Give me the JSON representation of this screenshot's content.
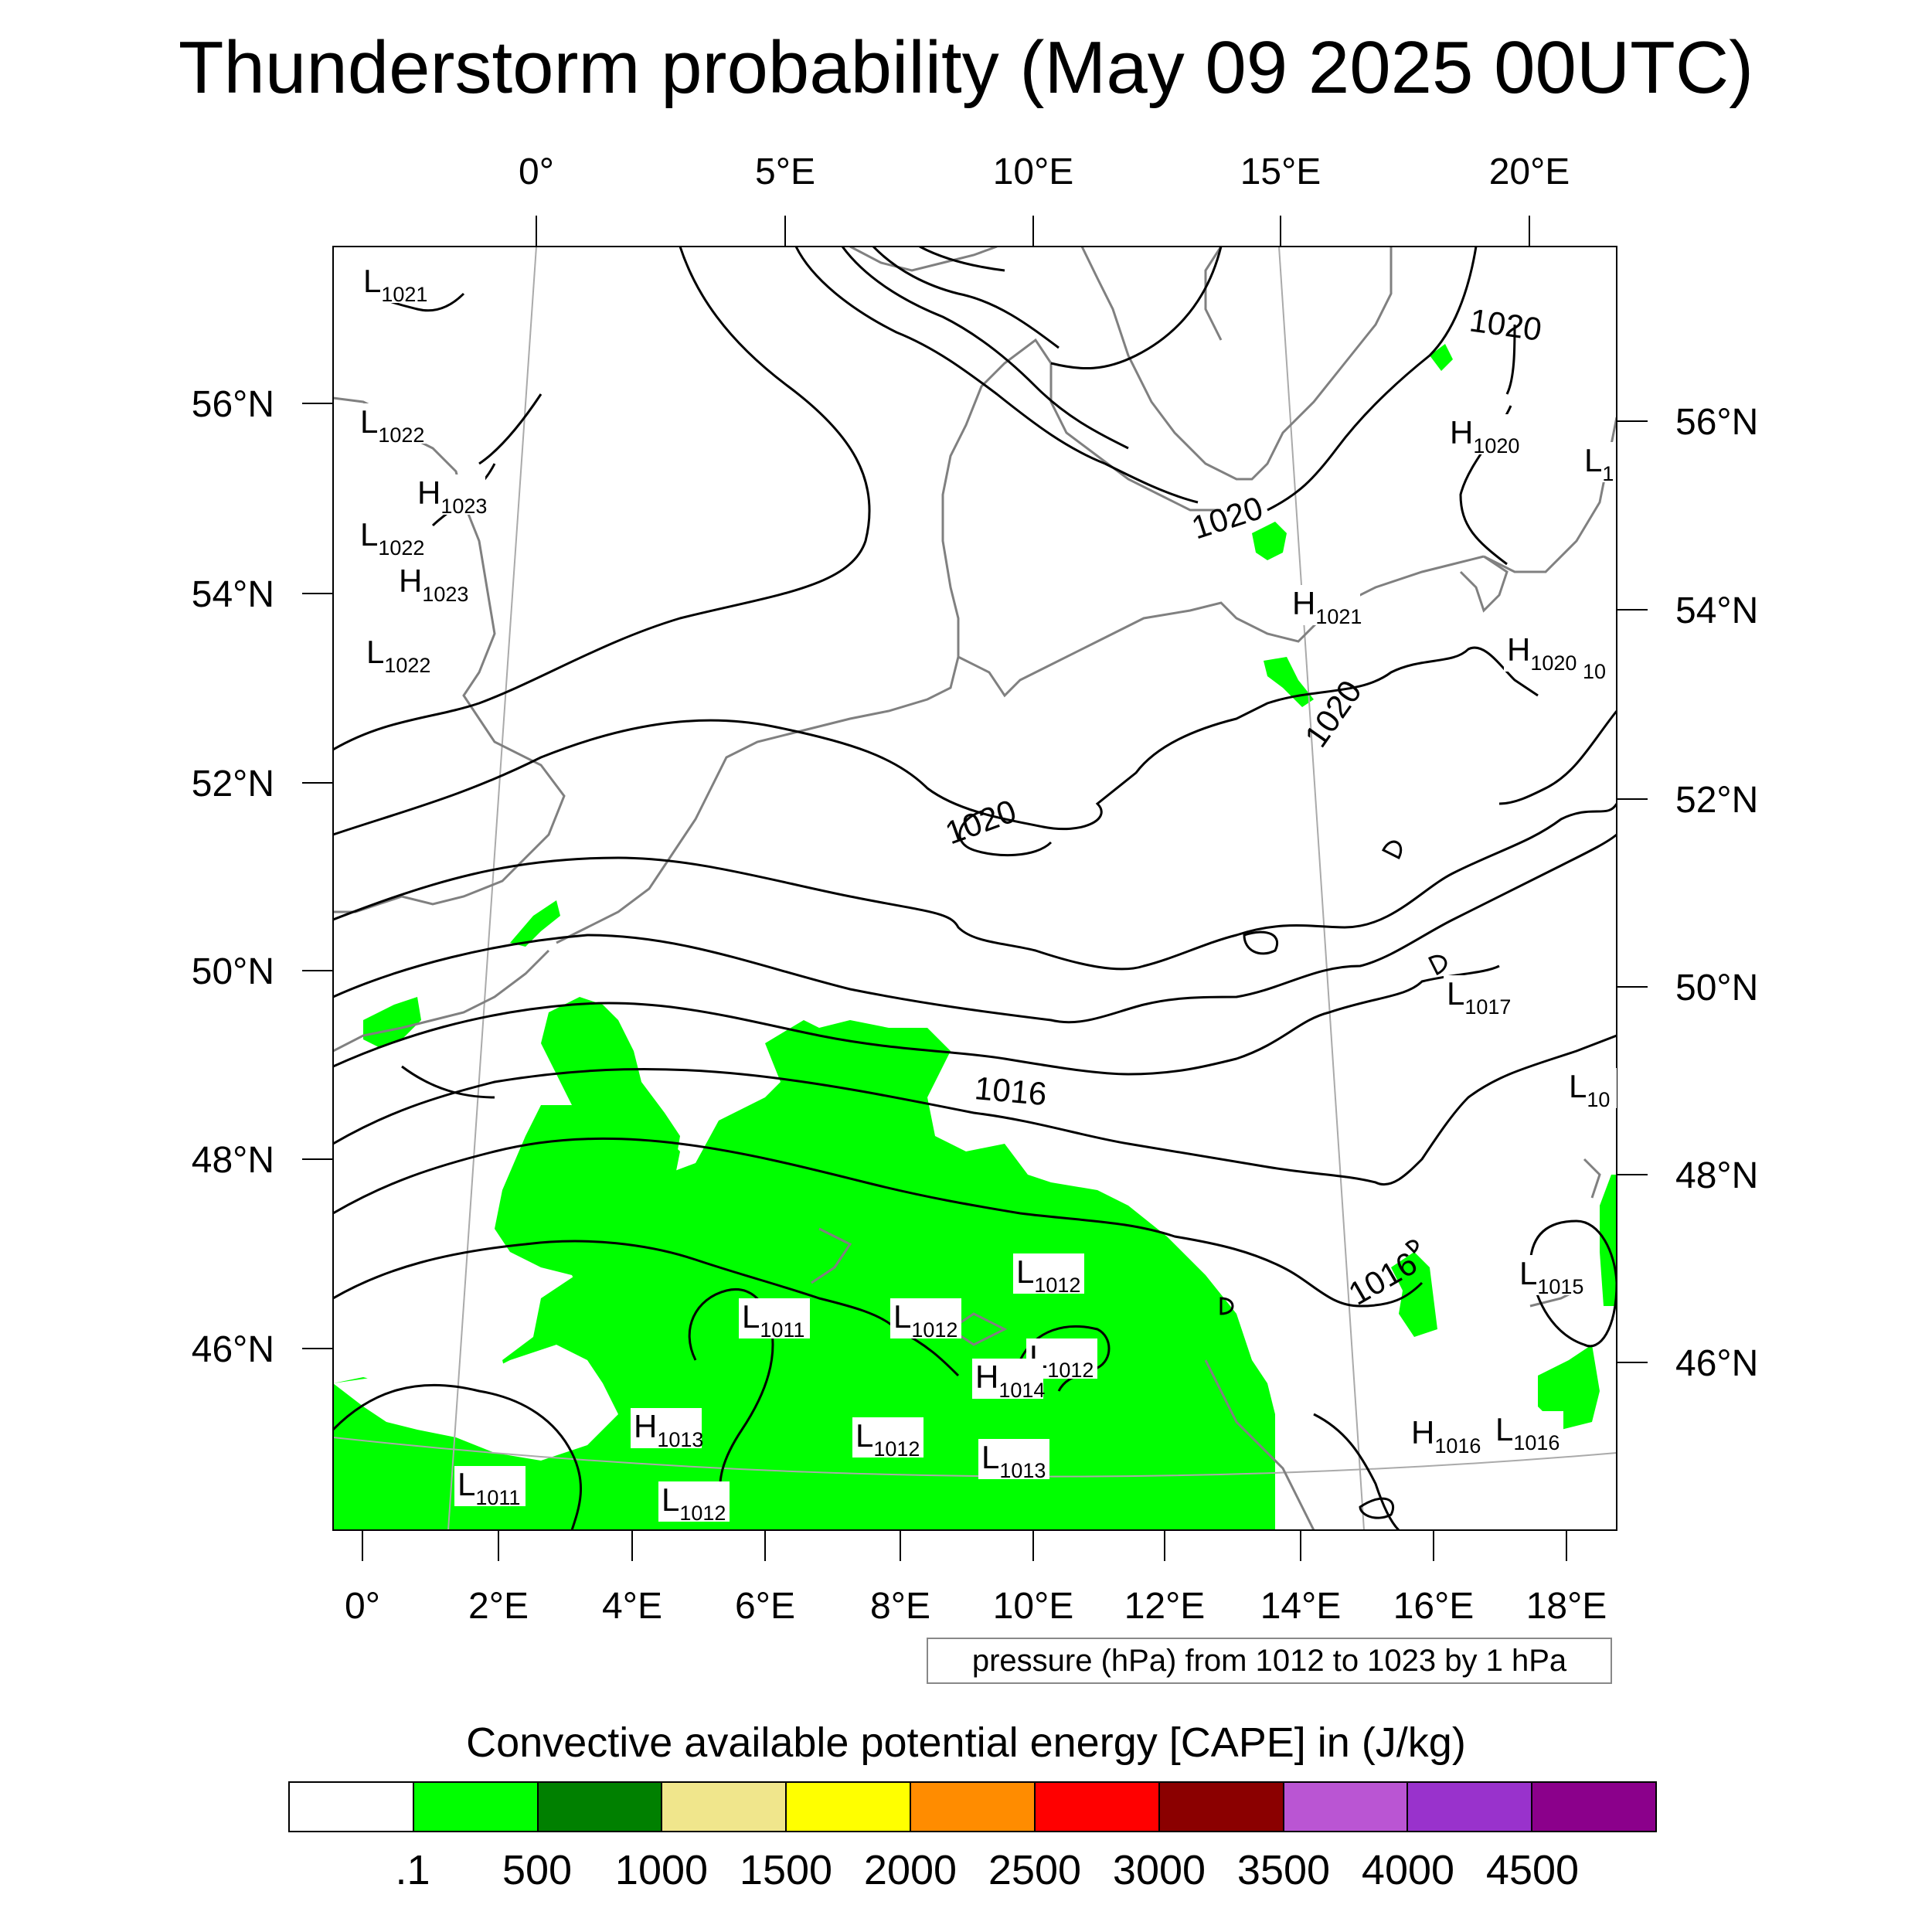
{
  "title": "Thunderstorm probability (May 09 2025 00UTC)",
  "map": {
    "projection": "conic (rotated)",
    "top_lon_ticks": [
      "0°",
      "5°E",
      "10°E",
      "15°E",
      "20°E"
    ],
    "bottom_lon_ticks": [
      "0°",
      "2°E",
      "4°E",
      "6°E",
      "8°E",
      "10°E",
      "12°E",
      "14°E",
      "16°E",
      "18°E"
    ],
    "left_lat_ticks": [
      "56°N",
      "54°N",
      "52°N",
      "50°N",
      "48°N",
      "46°N"
    ],
    "right_lat_ticks": [
      "56°N",
      "54°N",
      "52°N",
      "50°N",
      "48°N",
      "46°N"
    ],
    "pressure_centers": [
      {
        "type": "L",
        "value": "1021"
      },
      {
        "type": "L",
        "value": "1022"
      },
      {
        "type": "H",
        "value": "1023"
      },
      {
        "type": "L",
        "value": "1022"
      },
      {
        "type": "H",
        "value": "1023"
      },
      {
        "type": "L",
        "value": "1022"
      },
      {
        "type": "H",
        "value": "1020"
      },
      {
        "type": "L",
        "value": "1"
      },
      {
        "type": "H",
        "value": "1021"
      },
      {
        "type": "H",
        "value": "1020"
      },
      {
        "type": "",
        "value": "10"
      },
      {
        "type": "L",
        "value": "1017"
      },
      {
        "type": "L",
        "value": "10"
      },
      {
        "type": "L",
        "value": "1015"
      },
      {
        "type": "L",
        "value": "1012"
      },
      {
        "type": "L",
        "value": "1011"
      },
      {
        "type": "L",
        "value": "1012"
      },
      {
        "type": "L",
        "value": "1012"
      },
      {
        "type": "H",
        "value": "1014"
      },
      {
        "type": "H",
        "value": "1013"
      },
      {
        "type": "L",
        "value": "1012"
      },
      {
        "type": "L",
        "value": "1013"
      },
      {
        "type": "L",
        "value": "1011"
      },
      {
        "type": "L",
        "value": "1012"
      },
      {
        "type": "H",
        "value": "1016"
      },
      {
        "type": "L",
        "value": "1016"
      }
    ],
    "isobar_labels": [
      "1020",
      "1020",
      "1020",
      "1020",
      "1016",
      "1016"
    ],
    "colors": {
      "cape_fill": "#00ff00",
      "isobar": "#000000",
      "coastline": "#808080",
      "graticule": "#aaaaaa"
    }
  },
  "contour_info": "pressure (hPa) from 1012 to 1023 by 1 hPa",
  "colorbar": {
    "title": "Convective available potential energy [CAPE] in (J/kg)",
    "colors": [
      "#ffffff",
      "#00ff00",
      "#008000",
      "#f0e68c",
      "#ffff00",
      "#ff8c00",
      "#ff0000",
      "#8b0000",
      "#ba55d3",
      "#9932cc",
      "#8b008b"
    ],
    "labels": [
      ".1",
      "500",
      "1000",
      "1500",
      "2000",
      "2500",
      "3000",
      "3500",
      "4000",
      "4500"
    ]
  }
}
